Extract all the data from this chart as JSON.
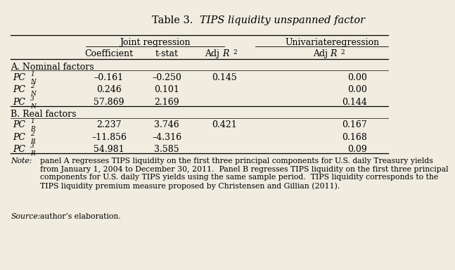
{
  "title_plain": "Table 3.  ",
  "title_italic": "TIPS liquidity unspanned factor",
  "section_A": "A. Nominal factors",
  "section_B": "B. Real factors",
  "rows_A": [
    [
      "–0.161",
      "–0.250",
      "0.145",
      "0.00"
    ],
    [
      "0.246",
      "0.101",
      "",
      "0.00"
    ],
    [
      "57.869",
      "2.169",
      "",
      "0.144"
    ]
  ],
  "rows_B": [
    [
      "2.237",
      "3.746",
      "0.421",
      "0.167"
    ],
    [
      "–11.856",
      "–4.316",
      "",
      "0.168"
    ],
    [
      "54.981",
      "3.585",
      "",
      "0.09"
    ]
  ],
  "note_italic": "Note:",
  "note_body": " panel A regresses TIPS liquidity on the first three principal components for U.S. daily Treasury yields\nfrom January 1, 2004 to December 30, 2011.  Panel B regresses TIPS liquidity on the first three principal\ncomponents for U.S. daily TIPS yields using the same sample period.  TIPS liquidity corresponds to the\nTIPS liquidity premium measure proposed by Christensen and Gillian (2011).",
  "source_italic": "Source:",
  "source_body": " author’s elaboration.",
  "bg_color": "#f0ece0",
  "text_color": "#000000",
  "fontsize_title": 10.5,
  "fontsize_body": 9.0,
  "fontsize_note": 7.8
}
